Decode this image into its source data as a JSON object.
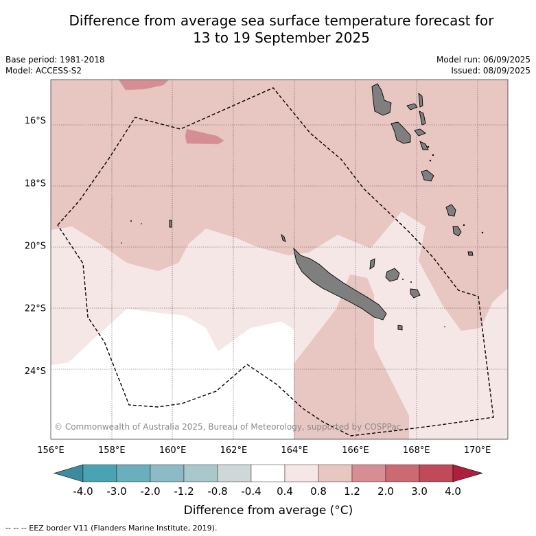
{
  "title_line1": "Difference from average sea surface temperature forecast for",
  "title_line2": "13 to 19 September 2025",
  "base_period": "Base period: 1981-2018",
  "model": "Model: ACCESS-S2",
  "model_run": "Model run: 06/09/2025",
  "issued": "Issued: 08/09/2025",
  "copyright": "© Commonwealth of Australia 2025, Bureau of Meteorology, supported by COSPPac",
  "map": {
    "lon_range": [
      156,
      171
    ],
    "lat_range": [
      -26.2,
      -14.7
    ],
    "lon_ticks": [
      {
        "value": 156,
        "label": "156°E"
      },
      {
        "value": 158,
        "label": "158°E"
      },
      {
        "value": 160,
        "label": "160°E"
      },
      {
        "value": 162,
        "label": "162°E"
      },
      {
        "value": 164,
        "label": "164°E"
      },
      {
        "value": 166,
        "label": "166°E"
      },
      {
        "value": 168,
        "label": "168°E"
      },
      {
        "value": 170,
        "label": "170°E"
      }
    ],
    "lat_ticks": [
      {
        "value": -16,
        "label": "16°S"
      },
      {
        "value": -18,
        "label": "18°S"
      },
      {
        "value": -20,
        "label": "20°S"
      },
      {
        "value": -22,
        "label": "22°S"
      },
      {
        "value": -24,
        "label": "24°S"
      }
    ],
    "grid": true
  },
  "colorbar": {
    "ticks": [
      "-4.0",
      "-3.0",
      "-2.0",
      "-1.2",
      "-0.8",
      "-0.4",
      "0.4",
      "0.8",
      "1.2",
      "2.0",
      "3.0",
      "4.0"
    ],
    "colors": [
      "#4aa3b3",
      "#6aafbd",
      "#8cbac5",
      "#a9c8cc",
      "#cfd8d9",
      "#ffffff",
      "#f5e7e6",
      "#e8c6c2",
      "#d68e94",
      "#cc6a72",
      "#c04a58"
    ],
    "under_color": "#3b8c9c",
    "over_color": "#ad1f3c",
    "label": "Difference from average (°C)"
  },
  "legend_note": "-- -- -- EEZ border V11 (Flanders Marine Institute, 2019).",
  "colors": {
    "anomaly_0_4_to_0_8": "#f5e7e6",
    "anomaly_0_8_to_1_2": "#e8c6c2",
    "anomaly_1_2_to_2_0": "#d68e94",
    "land": "#7f7f7f"
  }
}
